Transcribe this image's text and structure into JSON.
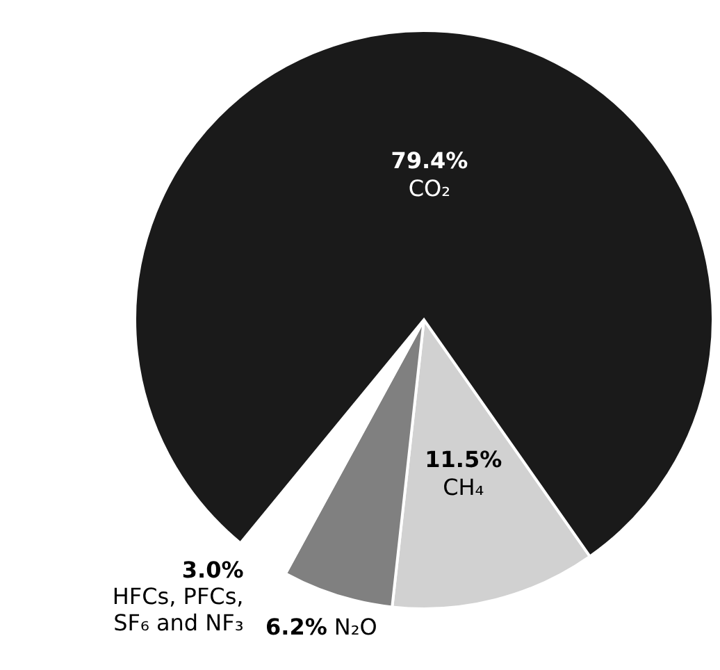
{
  "chart_data": {
    "type": "pie",
    "categories": [
      "CH₄",
      "N₂O",
      "HFCs, PFCs, SF₆ and NF₃",
      "CO₂"
    ],
    "values": [
      11.5,
      6.2,
      3.0,
      79.4
    ],
    "colors": [
      "#d1d1d1",
      "#808080",
      "#ffffff",
      "#1a1a1a"
    ],
    "value_labels": [
      "11.5%",
      "6.2%",
      "3.0%",
      "79.4%"
    ]
  }
}
